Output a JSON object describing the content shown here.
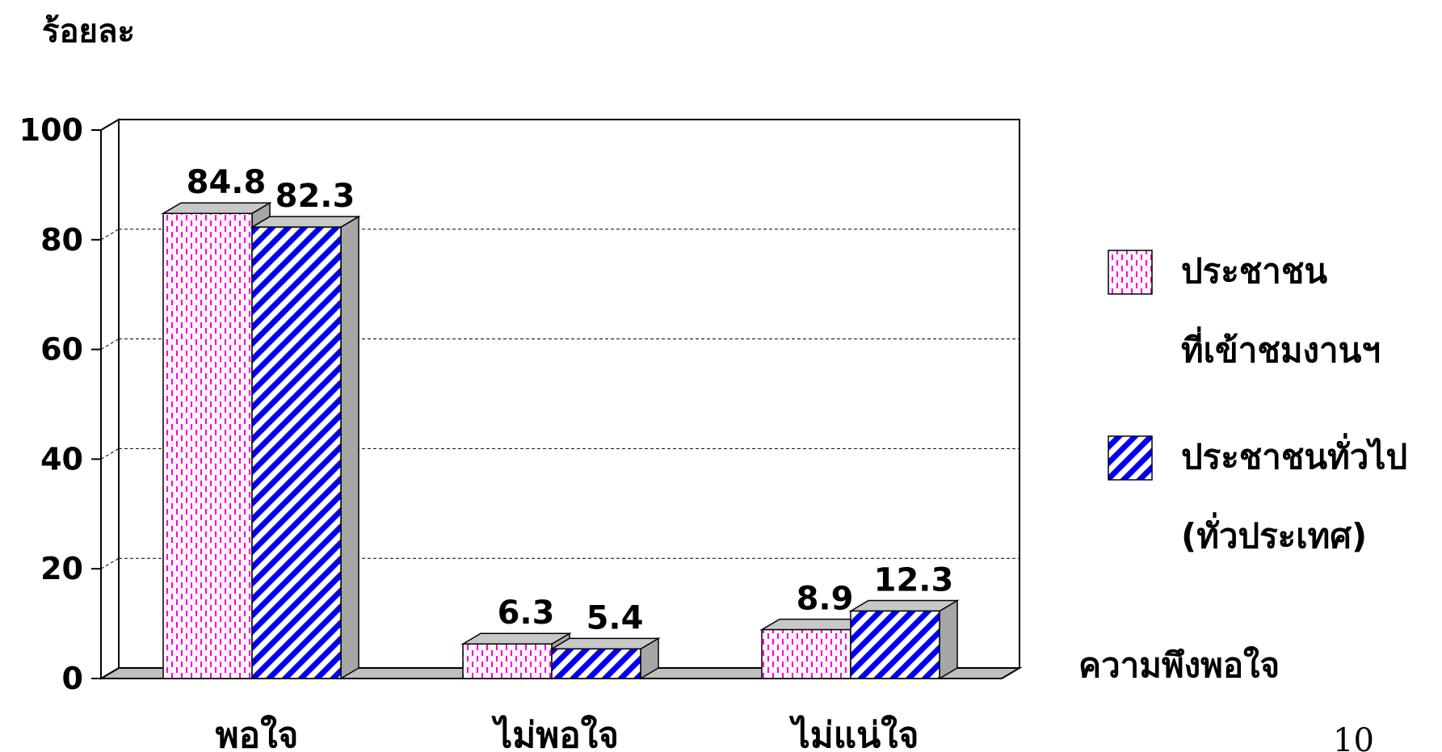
{
  "colors": {
    "series1_line": "#ff00cc",
    "series1_bg": "#fff4ff",
    "series2_line": "#0000ee",
    "series2_bg": "#ffffff",
    "floor": "#bfbfbf",
    "side": "#a6a6a6",
    "top": "#c8c8c8"
  },
  "page_number": "10",
  "chart_data": {
    "type": "bar",
    "ylabel": "ร้อยละ",
    "xlabel": "ความพึงพอใจ",
    "ylim": [
      0,
      100
    ],
    "yticks": [
      "0",
      "20",
      "40",
      "60",
      "80",
      "100"
    ],
    "grid": true,
    "legend_position": "right",
    "categories": [
      "พอใจ",
      "ไม่พอใจ",
      "ไม่แน่ใจ"
    ],
    "series": [
      {
        "name_lines": [
          "ประชาชน",
          "ที่เข้าชมงานฯ"
        ],
        "pattern": "pink-dashed-vertical",
        "values": [
          84.8,
          6.3,
          8.9
        ],
        "labels": [
          "84.8",
          "6.3",
          "8.9"
        ]
      },
      {
        "name_lines": [
          "ประชาชนทั่วไป",
          "(ทั่วประเทศ)"
        ],
        "pattern": "blue-diagonal-stripes",
        "values": [
          82.3,
          5.4,
          12.3
        ],
        "labels": [
          "82.3",
          "5.4",
          "12.3"
        ]
      }
    ]
  }
}
